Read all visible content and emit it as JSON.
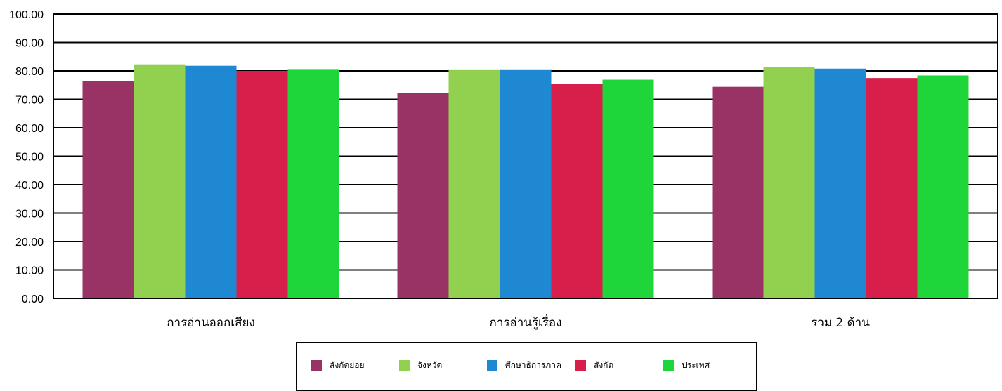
{
  "chart_data": {
    "type": "bar",
    "categories": [
      "การอ่านออกเสียง",
      "การอ่านรู้เรื่อง",
      "รวม 2 ด้าน"
    ],
    "series": [
      {
        "name": "สังกัดย่อย",
        "color": "#993366",
        "values": [
          76.4,
          72.3,
          74.4
        ]
      },
      {
        "name": "จังหวัด",
        "color": "#92D050",
        "values": [
          82.3,
          80.3,
          81.3
        ]
      },
      {
        "name": "ศึกษาธิการภาค",
        "color": "#1F88D2",
        "values": [
          81.8,
          80.3,
          80.8
        ]
      },
      {
        "name": "สังกัด",
        "color": "#D81E4A",
        "values": [
          80.0,
          75.5,
          77.5
        ]
      },
      {
        "name": "ประเทศ",
        "color": "#1FD63A",
        "values": [
          80.4,
          76.9,
          78.4
        ]
      }
    ],
    "ylim": [
      0,
      100
    ],
    "yticks": [
      "0.00",
      "10.00",
      "20.00",
      "30.00",
      "40.00",
      "50.00",
      "60.00",
      "70.00",
      "80.00",
      "90.00",
      "100.00"
    ],
    "grid": true,
    "legend_position": "bottom",
    "title": "",
    "xlabel": "",
    "ylabel": ""
  }
}
